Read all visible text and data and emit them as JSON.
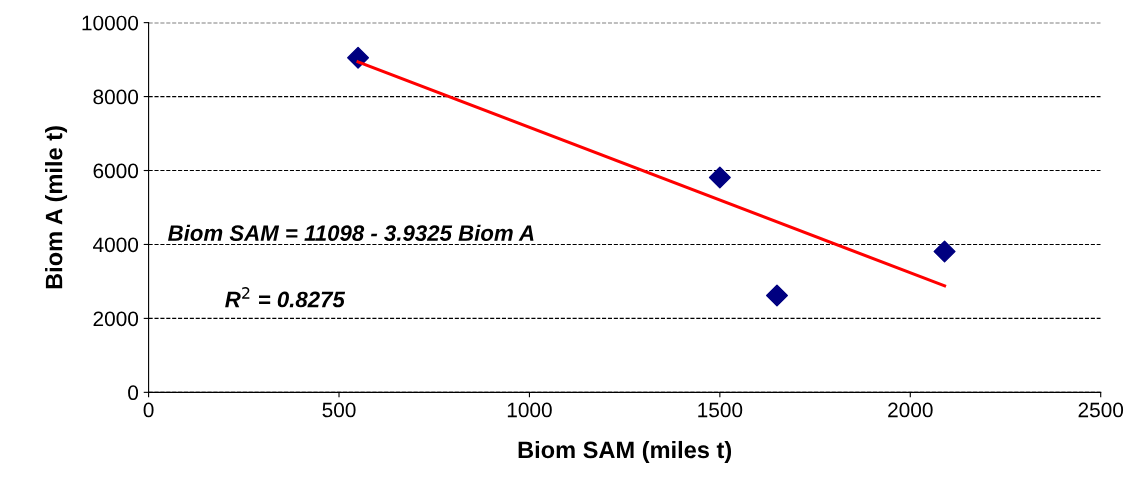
{
  "chart_data": {
    "type": "scatter",
    "xlabel": "Biom SAM (miles t)",
    "ylabel": "Biom A (mile t)",
    "xlim": [
      0,
      2500
    ],
    "xticks": [
      0,
      500,
      1000,
      1500,
      2000,
      2500
    ],
    "ylim": [
      0,
      10000
    ],
    "yticks": [
      0,
      2000,
      4000,
      6000,
      8000,
      10000
    ],
    "grid": "y",
    "legend": false,
    "series": [
      {
        "color": "#000080",
        "marker": "diamond",
        "x": [
          550,
          1500,
          1650,
          2090
        ],
        "values": [
          9050,
          5810,
          2620,
          3810
        ]
      },
      {
        "type": "line",
        "color": "#ff0000",
        "marker": "none",
        "line_style": "solid",
        "x": [
          550,
          2090
        ],
        "values": [
          8940,
          2880
        ]
      }
    ],
    "annotations": [
      "Biom SAM = 11098 - 3.9325 Biom A",
      "R$^{2}$ = 0.8275"
    ]
  }
}
